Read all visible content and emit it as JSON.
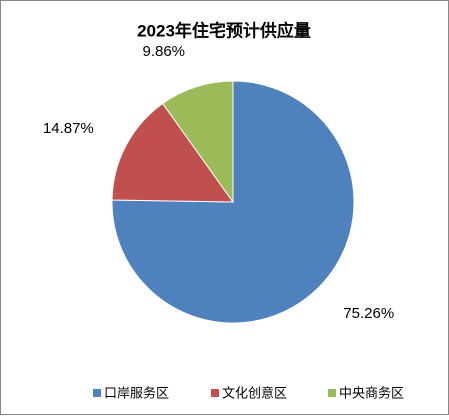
{
  "chart_data": {
    "type": "pie",
    "title": "2023年住宅预计供应量",
    "categories": [
      "口岸服务区",
      "文化创意区",
      "中央商务区"
    ],
    "values": [
      75.26,
      14.87,
      9.86
    ],
    "value_labels": [
      "75.26%",
      "14.87%",
      "9.86%"
    ],
    "colors": [
      "#4f81bd",
      "#c0504d",
      "#9bbb59"
    ],
    "legend": "bottom"
  }
}
